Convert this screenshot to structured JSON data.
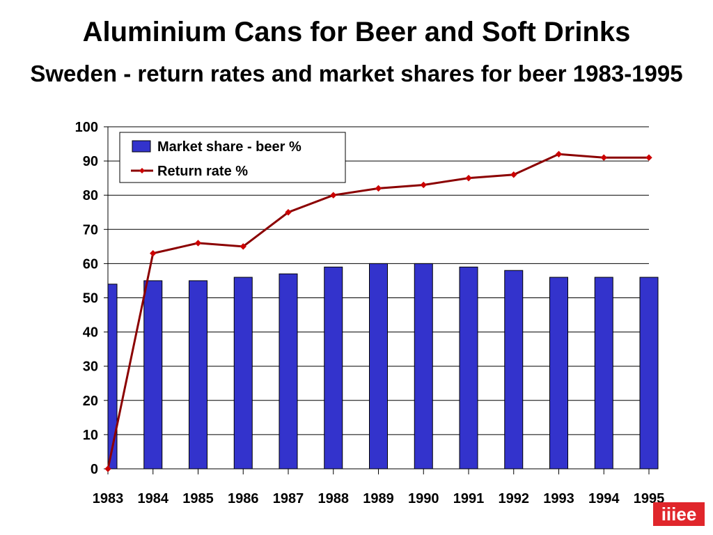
{
  "chart_data": {
    "type": "bar",
    "title": "Aluminium Cans for Beer and Soft Drinks",
    "subtitle": "Sweden - return rates and market shares for beer 1983-1995",
    "categories": [
      "1983",
      "1984",
      "1985",
      "1986",
      "1987",
      "1988",
      "1989",
      "1990",
      "1991",
      "1992",
      "1993",
      "1994",
      "1995"
    ],
    "series": [
      {
        "name": "Market share - beer %",
        "type": "bar",
        "color": "#3333cc",
        "values": [
          54,
          55,
          55,
          56,
          57,
          59,
          60,
          60,
          59,
          58,
          56,
          56,
          56
        ]
      },
      {
        "name": "Return rate %",
        "type": "line",
        "color": "#8b0000",
        "values": [
          0,
          63,
          66,
          65,
          75,
          80,
          82,
          83,
          85,
          86,
          92,
          91,
          91
        ]
      }
    ],
    "ylim": [
      0,
      100
    ],
    "yticks": [
      0,
      10,
      20,
      30,
      40,
      50,
      60,
      70,
      80,
      90,
      100
    ],
    "grid": true,
    "legend_position": "top-left",
    "xlabel": "",
    "ylabel": ""
  },
  "logo": {
    "text": "iiiee",
    "color": "#e0262b"
  }
}
